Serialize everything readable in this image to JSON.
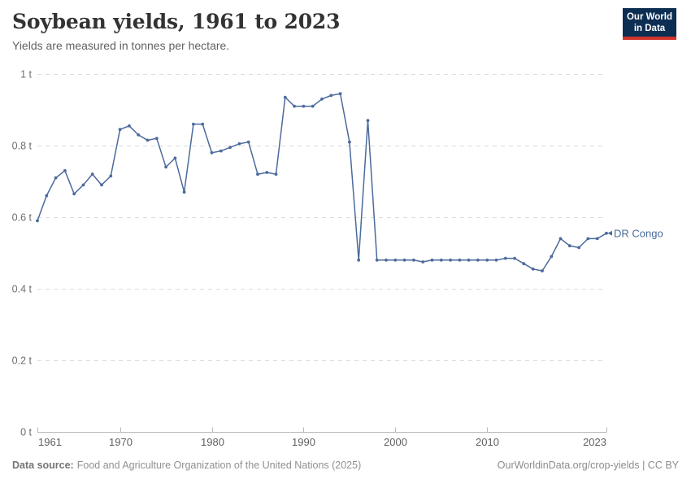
{
  "header": {
    "title": "Soybean yields, 1961 to 2023",
    "subtitle": "Yields are measured in tonnes per hectare.",
    "logo": {
      "line1": "Our World",
      "line2": "in Data",
      "bg_color": "#0d2e53",
      "accent_color": "#d0342c"
    }
  },
  "chart_data": {
    "type": "line",
    "title": "Soybean yields, 1961 to 2023",
    "ylabel": "tonnes per hectare",
    "unit": "t",
    "xlim": [
      1961,
      2023
    ],
    "ylim": [
      0,
      1
    ],
    "grid": "dashed-horizontal",
    "legend_position": "end-of-line-label",
    "xticks": [
      1961,
      1970,
      1980,
      1990,
      2000,
      2010,
      2023
    ],
    "yticks": [
      {
        "value": 0,
        "label": "0 t"
      },
      {
        "value": 0.2,
        "label": "0.2 t"
      },
      {
        "value": 0.4,
        "label": "0.4 t"
      },
      {
        "value": 0.6,
        "label": "0.6 t"
      },
      {
        "value": 0.8,
        "label": "0.8 t"
      },
      {
        "value": 1,
        "label": "1 t"
      }
    ],
    "x": [
      1961,
      1962,
      1963,
      1964,
      1965,
      1966,
      1967,
      1968,
      1969,
      1970,
      1971,
      1972,
      1973,
      1974,
      1975,
      1976,
      1977,
      1978,
      1979,
      1980,
      1981,
      1982,
      1983,
      1984,
      1985,
      1986,
      1987,
      1988,
      1989,
      1990,
      1991,
      1992,
      1993,
      1994,
      1995,
      1996,
      1997,
      1998,
      1999,
      2000,
      2001,
      2002,
      2003,
      2004,
      2005,
      2006,
      2007,
      2008,
      2009,
      2010,
      2011,
      2012,
      2013,
      2014,
      2015,
      2016,
      2017,
      2018,
      2019,
      2020,
      2021,
      2022,
      2023
    ],
    "series": [
      {
        "name": "DR Congo",
        "color": "#4C6A9C",
        "values": [
          0.59,
          0.66,
          0.71,
          0.73,
          0.665,
          0.69,
          0.72,
          0.69,
          0.715,
          0.845,
          0.855,
          0.83,
          0.815,
          0.82,
          0.74,
          0.765,
          0.67,
          0.86,
          0.86,
          0.78,
          0.785,
          0.795,
          0.805,
          0.81,
          0.72,
          0.725,
          0.72,
          0.935,
          0.91,
          0.91,
          0.91,
          0.93,
          0.94,
          0.945,
          0.81,
          0.48,
          0.87,
          0.48,
          0.48,
          0.48,
          0.48,
          0.48,
          0.475,
          0.48,
          0.48,
          0.48,
          0.48,
          0.48,
          0.48,
          0.48,
          0.48,
          0.485,
          0.485,
          0.47,
          0.455,
          0.45,
          0.49,
          0.54,
          0.52,
          0.515,
          0.54,
          0.54,
          0.555
        ]
      }
    ],
    "axis_color": "#b9b9b9",
    "grid_color": "#dcdcdc",
    "tick_label_color": "#6e6e6e"
  },
  "footer": {
    "source_label": "Data source:",
    "source_text": "Food and Agriculture Organization of the United Nations (2025)",
    "right_text": "OurWorldinData.org/crop-yields | CC BY"
  }
}
